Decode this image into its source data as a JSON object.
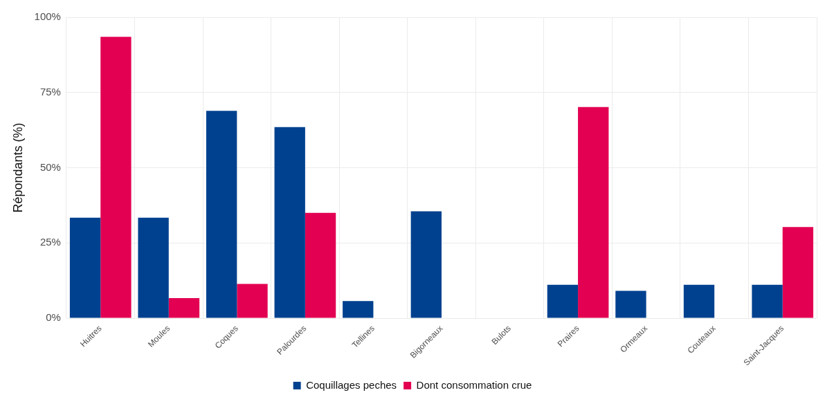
{
  "chart_data": {
    "type": "bar",
    "ylabel": "Répondants (%)",
    "categories": [
      "Huitres",
      "Moules",
      "Coques",
      "Palourdes",
      "Tellines",
      "Bigorneaux",
      "Bulots",
      "Praires",
      "Ormeaux",
      "Couteaux",
      "Saint-Jacques"
    ],
    "series": [
      {
        "name": "Coquillages peches",
        "color": "#00418f",
        "values": [
          33.4,
          33.4,
          68.9,
          63.5,
          5.7,
          35.5,
          0,
          11.1,
          9.1,
          11.1,
          11.1
        ]
      },
      {
        "name": "Dont consommation crue",
        "color": "#e30052",
        "values": [
          93.5,
          6.7,
          11.4,
          35,
          0,
          0,
          0,
          70.2,
          0,
          0,
          30.3
        ]
      }
    ],
    "ylim": [
      0,
      100
    ],
    "yticks": [
      {
        "value": 0,
        "label": "0%"
      },
      {
        "value": 25,
        "label": "25%"
      },
      {
        "value": 50,
        "label": "50%"
      },
      {
        "value": 75,
        "label": "75%"
      },
      {
        "value": 100,
        "label": "100%"
      }
    ],
    "grid": true,
    "legend": "bottom"
  }
}
